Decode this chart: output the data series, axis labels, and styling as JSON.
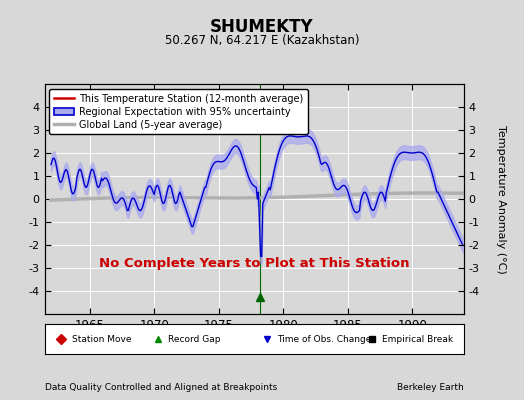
{
  "title": "SHUMEKTY",
  "subtitle": "50.267 N, 64.217 E (Kazakhstan)",
  "ylabel": "Temperature Anomaly (°C)",
  "xlabel_left": "Data Quality Controlled and Aligned at Breakpoints",
  "xlabel_right": "Berkeley Earth",
  "ylim": [
    -5,
    5
  ],
  "xlim": [
    1961.5,
    1994.0
  ],
  "xticks": [
    1965,
    1970,
    1975,
    1980,
    1985,
    1990
  ],
  "yticks": [
    -4,
    -3,
    -2,
    -1,
    0,
    1,
    2,
    3,
    4
  ],
  "bg_color": "#d8d8d8",
  "plot_bg_color": "#d8d8d8",
  "grid_color": "white",
  "regional_line_color": "#0000cc",
  "regional_fill_color": "#aaaaee",
  "global_line_color": "#b0b0b0",
  "station_line_color": "#cc0000",
  "no_data_text": "No Complete Years to Plot at This Station",
  "no_data_color": "#cc0000",
  "record_gap_x": 1978.2,
  "record_gap_y": -4.25,
  "vertical_line_x": 1978.2,
  "legend_items": [
    {
      "label": "This Temperature Station (12-month average)",
      "color": "#cc0000",
      "lw": 1.5
    },
    {
      "label": "Regional Expectation with 95% uncertainty",
      "color": "#0000cc",
      "fill_color": "#aaaaee"
    },
    {
      "label": "Global Land (5-year average)",
      "color": "#b0b0b0",
      "lw": 2.5
    }
  ],
  "bottom_legend": [
    {
      "label": "Station Move",
      "color": "#cc0000",
      "marker": "D"
    },
    {
      "label": "Record Gap",
      "color": "#008800",
      "marker": "^"
    },
    {
      "label": "Time of Obs. Change",
      "color": "#0000cc",
      "marker": "v"
    },
    {
      "label": "Empirical Break",
      "color": "#000000",
      "marker": "s"
    }
  ]
}
